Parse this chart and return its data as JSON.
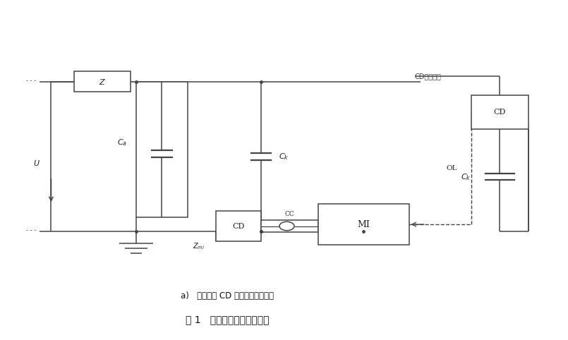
{
  "title_caption": "图 1   局部放电基本试验回路",
  "subcaption": "a)   耦合装置 CD 与耦合电容器串联",
  "cd_label_top": "CD交流装置",
  "bg_color": "#ffffff",
  "line_color": "#444444",
  "dashed_color": "#444444",
  "fig_width": 8.05,
  "fig_height": 4.82,
  "dpi": 100
}
